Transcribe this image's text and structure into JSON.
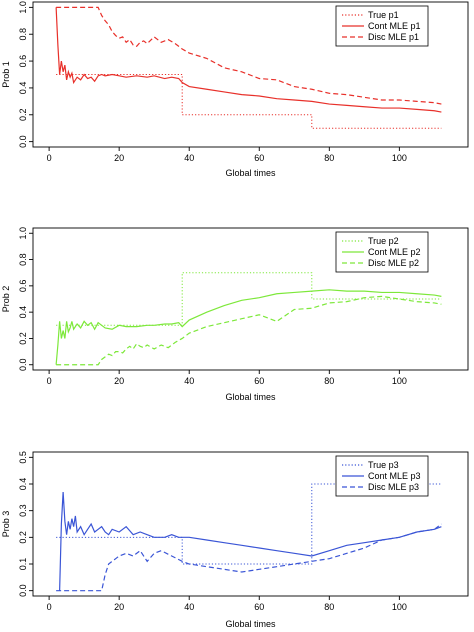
{
  "chart_data": [
    {
      "type": "line",
      "ylabel": "Prob 1",
      "xlabel": "Global times",
      "xlim": [
        0,
        115
      ],
      "ylim": [
        0,
        1
      ],
      "xticks": [
        0,
        20,
        40,
        60,
        80,
        100
      ],
      "yticks": [
        0.0,
        0.2,
        0.4,
        0.6,
        0.8,
        1.0
      ],
      "color": "#e8302a",
      "series": [
        {
          "name": "True p1",
          "style": "dotted",
          "step": true,
          "x": [
            2,
            38,
            38,
            75,
            75,
            112
          ],
          "y": [
            0.5,
            0.5,
            0.2,
            0.2,
            0.1,
            0.1
          ]
        },
        {
          "name": "Cont MLE p1",
          "style": "solid",
          "x": [
            2,
            2.5,
            3,
            3.5,
            4,
            4.5,
            5,
            5.5,
            6,
            6.5,
            7,
            8,
            9,
            10,
            11,
            12,
            13,
            14,
            15,
            16,
            18,
            20,
            22,
            25,
            28,
            30,
            33,
            35,
            37,
            38,
            40,
            45,
            50,
            55,
            60,
            65,
            70,
            75,
            80,
            85,
            90,
            95,
            100,
            105,
            110,
            112
          ],
          "y": [
            1.0,
            0.72,
            0.5,
            0.6,
            0.52,
            0.57,
            0.46,
            0.52,
            0.48,
            0.51,
            0.44,
            0.48,
            0.46,
            0.5,
            0.47,
            0.48,
            0.45,
            0.49,
            0.5,
            0.49,
            0.5,
            0.49,
            0.48,
            0.49,
            0.48,
            0.49,
            0.47,
            0.48,
            0.47,
            0.44,
            0.41,
            0.39,
            0.37,
            0.35,
            0.34,
            0.32,
            0.31,
            0.3,
            0.28,
            0.27,
            0.26,
            0.25,
            0.25,
            0.24,
            0.23,
            0.22
          ]
        },
        {
          "name": "Disc MLE p1",
          "style": "dashed",
          "x": [
            2,
            14,
            15,
            16,
            17,
            18,
            19,
            20,
            21,
            22,
            23,
            24,
            25,
            26,
            27,
            28,
            30,
            32,
            34,
            36,
            38,
            40,
            45,
            50,
            55,
            60,
            65,
            70,
            75,
            80,
            85,
            90,
            95,
            100,
            105,
            110,
            112
          ],
          "y": [
            1.0,
            1.0,
            0.94,
            0.9,
            0.87,
            0.82,
            0.79,
            0.77,
            0.78,
            0.74,
            0.76,
            0.72,
            0.71,
            0.74,
            0.75,
            0.73,
            0.78,
            0.74,
            0.76,
            0.73,
            0.69,
            0.66,
            0.62,
            0.55,
            0.52,
            0.47,
            0.46,
            0.41,
            0.39,
            0.36,
            0.35,
            0.33,
            0.31,
            0.31,
            0.3,
            0.29,
            0.28
          ]
        }
      ],
      "legend_position": "top-right"
    },
    {
      "type": "line",
      "ylabel": "Prob 2",
      "xlabel": "Global times",
      "xlim": [
        0,
        115
      ],
      "ylim": [
        0,
        1
      ],
      "xticks": [
        0,
        20,
        40,
        60,
        80,
        100
      ],
      "yticks": [
        0.0,
        0.2,
        0.4,
        0.6,
        0.8,
        1.0
      ],
      "color": "#7de83a",
      "series": [
        {
          "name": "True p2",
          "style": "dotted",
          "step": true,
          "x": [
            2,
            38,
            38,
            75,
            75,
            112
          ],
          "y": [
            0.3,
            0.3,
            0.7,
            0.7,
            0.5,
            0.5
          ]
        },
        {
          "name": "Cont MLE p2",
          "style": "solid",
          "x": [
            2,
            2.5,
            3,
            3.5,
            4,
            4.5,
            5,
            5.5,
            6,
            6.5,
            7,
            8,
            9,
            10,
            11,
            12,
            13,
            14,
            15,
            16,
            18,
            20,
            22,
            25,
            28,
            30,
            33,
            35,
            37,
            38,
            40,
            45,
            50,
            55,
            60,
            65,
            70,
            75,
            80,
            85,
            90,
            95,
            100,
            105,
            110,
            112
          ],
          "y": [
            0.0,
            0.15,
            0.33,
            0.2,
            0.26,
            0.2,
            0.33,
            0.25,
            0.28,
            0.33,
            0.27,
            0.31,
            0.28,
            0.33,
            0.3,
            0.32,
            0.27,
            0.32,
            0.3,
            0.28,
            0.27,
            0.3,
            0.29,
            0.29,
            0.3,
            0.3,
            0.31,
            0.31,
            0.32,
            0.29,
            0.34,
            0.4,
            0.45,
            0.49,
            0.51,
            0.54,
            0.55,
            0.56,
            0.57,
            0.56,
            0.56,
            0.55,
            0.55,
            0.54,
            0.53,
            0.52
          ]
        },
        {
          "name": "Disc MLE p2",
          "style": "dashed",
          "x": [
            2,
            14,
            15,
            16,
            17,
            18,
            19,
            20,
            21,
            22,
            23,
            24,
            25,
            26,
            27,
            28,
            30,
            32,
            34,
            36,
            38,
            40,
            45,
            50,
            55,
            60,
            65,
            70,
            75,
            80,
            85,
            90,
            95,
            100,
            105,
            110,
            112
          ],
          "y": [
            0.0,
            0.0,
            0.04,
            0.06,
            0.08,
            0.07,
            0.1,
            0.1,
            0.09,
            0.12,
            0.14,
            0.12,
            0.16,
            0.14,
            0.13,
            0.15,
            0.12,
            0.15,
            0.13,
            0.17,
            0.2,
            0.24,
            0.29,
            0.32,
            0.35,
            0.38,
            0.33,
            0.42,
            0.43,
            0.47,
            0.48,
            0.51,
            0.52,
            0.5,
            0.48,
            0.47,
            0.46
          ]
        }
      ],
      "legend_position": "top-right"
    },
    {
      "type": "line",
      "ylabel": "Prob 3",
      "xlabel": "Global times",
      "xlim": [
        0,
        115
      ],
      "ylim": [
        0,
        0.5
      ],
      "xticks": [
        0,
        20,
        40,
        60,
        80,
        100
      ],
      "yticks": [
        0.0,
        0.1,
        0.2,
        0.3,
        0.4,
        0.5
      ],
      "color": "#3a55d6",
      "series": [
        {
          "name": "True p3",
          "style": "dotted",
          "step": true,
          "x": [
            2,
            38,
            38,
            75,
            75,
            112
          ],
          "y": [
            0.2,
            0.2,
            0.1,
            0.1,
            0.4,
            0.4
          ]
        },
        {
          "name": "Cont MLE p3",
          "style": "solid",
          "x": [
            3,
            3.5,
            4,
            4.5,
            5,
            5.5,
            6,
            6.5,
            7,
            7.5,
            8,
            9,
            10,
            11,
            12,
            13,
            14,
            15,
            16,
            17,
            18,
            20,
            22,
            24,
            26,
            28,
            30,
            33,
            35,
            37,
            40,
            45,
            50,
            55,
            60,
            65,
            70,
            75,
            80,
            85,
            90,
            95,
            100,
            105,
            110,
            112
          ],
          "y": [
            0.0,
            0.25,
            0.37,
            0.26,
            0.21,
            0.26,
            0.23,
            0.27,
            0.24,
            0.28,
            0.22,
            0.24,
            0.21,
            0.23,
            0.25,
            0.22,
            0.23,
            0.24,
            0.22,
            0.21,
            0.23,
            0.22,
            0.24,
            0.21,
            0.22,
            0.21,
            0.2,
            0.2,
            0.21,
            0.2,
            0.2,
            0.19,
            0.18,
            0.17,
            0.16,
            0.15,
            0.14,
            0.13,
            0.15,
            0.17,
            0.18,
            0.19,
            0.2,
            0.22,
            0.23,
            0.24
          ]
        },
        {
          "name": "Disc MLE p3",
          "style": "dashed",
          "x": [
            2,
            15,
            16,
            17,
            18,
            19,
            20,
            22,
            24,
            26,
            28,
            30,
            32,
            35,
            38,
            40,
            45,
            50,
            55,
            60,
            65,
            70,
            75,
            80,
            85,
            90,
            95,
            100,
            105,
            110,
            112
          ],
          "y": [
            0.0,
            0.0,
            0.06,
            0.1,
            0.11,
            0.12,
            0.13,
            0.14,
            0.13,
            0.15,
            0.11,
            0.14,
            0.15,
            0.13,
            0.11,
            0.1,
            0.09,
            0.08,
            0.07,
            0.08,
            0.09,
            0.1,
            0.11,
            0.12,
            0.14,
            0.16,
            0.19,
            0.2,
            0.22,
            0.23,
            0.25
          ]
        }
      ],
      "legend_position": "top-right"
    }
  ]
}
